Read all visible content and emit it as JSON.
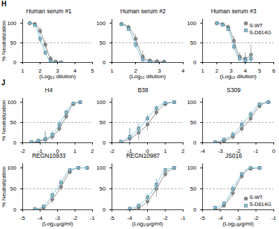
{
  "chart_data": [
    {
      "panel": "H",
      "type": "line",
      "title": "Human serum #1",
      "x_label": "(Log₁₀ dilution)",
      "y_label": "% Neutralization",
      "xlim": [
        1,
        5
      ],
      "xticks": [
        1,
        2,
        3,
        4,
        5
      ],
      "ylim": [
        0,
        110
      ],
      "yticks": [
        0,
        50,
        100
      ],
      "reference_line": 50,
      "x": [
        1.4,
        1.7,
        2.0,
        2.3,
        2.6,
        2.9,
        3.2
      ],
      "series": [
        {
          "name": "S-WT",
          "color": "#8a8a8a",
          "marker": "circle",
          "values": [
            100,
            98,
            80,
            45,
            10,
            2,
            0
          ],
          "error": [
            0,
            3,
            8,
            10,
            5,
            0,
            0
          ]
        },
        {
          "name": "S-D614G",
          "color": "#7cc4e0",
          "marker": "square",
          "values": [
            100,
            95,
            60,
            25,
            3,
            0,
            0
          ],
          "error": [
            0,
            4,
            10,
            8,
            2,
            0,
            0
          ]
        }
      ]
    },
    {
      "panel": "H",
      "type": "line",
      "title": "Human serum #2",
      "x_label": "(Log₁₀ dilution)",
      "xlim": [
        1,
        4
      ],
      "xticks": [
        1,
        2,
        3,
        4
      ],
      "ylim": [
        0,
        110
      ],
      "yticks": [
        0,
        50,
        100
      ],
      "reference_line": 50,
      "x": [
        1.4,
        1.7,
        2.0,
        2.3,
        2.6,
        2.9,
        3.2
      ],
      "series": [
        {
          "name": "S-WT",
          "color": "#8a8a8a",
          "marker": "circle",
          "values": [
            98,
            90,
            60,
            15,
            5,
            3,
            2
          ],
          "error": [
            0,
            5,
            12,
            15,
            4,
            0,
            0
          ]
        },
        {
          "name": "S-D614G",
          "color": "#7cc4e0",
          "marker": "square",
          "values": [
            97,
            85,
            45,
            8,
            2,
            0,
            0
          ],
          "error": [
            0,
            5,
            10,
            6,
            0,
            0,
            0
          ]
        }
      ]
    },
    {
      "panel": "H",
      "type": "line",
      "title": "Human serum #3",
      "x_label": "(Log₁₀ dilution)",
      "legend": "upper right",
      "xlim": [
        1,
        6
      ],
      "xticks": [
        1,
        2,
        3,
        4,
        5,
        6
      ],
      "ylim": [
        0,
        110
      ],
      "yticks": [
        0,
        50,
        100
      ],
      "reference_line": 50,
      "x": [
        2.0,
        2.4,
        2.8,
        3.2,
        3.6,
        4.0,
        4.4
      ],
      "series": [
        {
          "name": "S-WT",
          "color": "#8a8a8a",
          "marker": "circle",
          "values": [
            100,
            97,
            90,
            55,
            15,
            10,
            20
          ],
          "error": [
            0,
            3,
            6,
            12,
            10,
            15,
            25
          ]
        },
        {
          "name": "S-D614G",
          "color": "#7cc4e0",
          "marker": "square",
          "values": [
            100,
            96,
            85,
            40,
            10,
            5,
            10
          ],
          "error": [
            0,
            3,
            5,
            10,
            8,
            10,
            15
          ]
        }
      ]
    },
    {
      "panel": "J",
      "type": "line",
      "title": "H4",
      "y_label": "% Neutralization",
      "xlim": [
        -2,
        2
      ],
      "xticks": [
        -2,
        -1,
        0,
        1,
        2
      ],
      "ylim": [
        0,
        110
      ],
      "yticks": [
        0,
        50,
        100
      ],
      "reference_line": 50,
      "x": [
        -1.5,
        -1.1,
        -0.7,
        -0.3,
        0.1,
        0.5,
        0.9,
        1.3
      ],
      "series": [
        {
          "name": "S-WT",
          "color": "#8a8a8a",
          "marker": "circle",
          "values": [
            0,
            3,
            8,
            15,
            35,
            65,
            95,
            100
          ],
          "error": [
            0,
            5,
            20,
            10,
            10,
            8,
            3,
            0
          ]
        },
        {
          "name": "S-D614G",
          "color": "#7cc4e0",
          "marker": "square",
          "values": [
            2,
            5,
            10,
            20,
            45,
            75,
            97,
            100
          ],
          "error": [
            0,
            5,
            15,
            10,
            10,
            6,
            2,
            0
          ]
        }
      ]
    },
    {
      "panel": "J",
      "type": "line",
      "title": "B38",
      "xlim": [
        -2,
        2
      ],
      "xticks": [
        -2,
        -1,
        0,
        1,
        2
      ],
      "ylim": [
        0,
        110
      ],
      "yticks": [
        0,
        50,
        100
      ],
      "reference_line": 50,
      "x": [
        -1.5,
        -1.0,
        -0.5,
        0.0,
        0.5,
        1.0,
        1.5
      ],
      "series": [
        {
          "name": "S-WT",
          "color": "#8a8a8a",
          "marker": "circle",
          "values": [
            0,
            10,
            25,
            45,
            75,
            95,
            100
          ],
          "error": [
            0,
            25,
            20,
            15,
            10,
            4,
            0
          ]
        },
        {
          "name": "S-D614G",
          "color": "#7cc4e0",
          "marker": "square",
          "values": [
            3,
            15,
            35,
            60,
            85,
            98,
            100
          ],
          "error": [
            0,
            20,
            15,
            12,
            8,
            2,
            0
          ]
        }
      ]
    },
    {
      "panel": "J",
      "type": "line",
      "title": "S309",
      "xlim": [
        -4,
        0
      ],
      "xticks": [
        -4,
        -3,
        -2,
        -1,
        0
      ],
      "ylim": [
        0,
        110
      ],
      "yticks": [
        0,
        50,
        100
      ],
      "reference_line": 50,
      "x": [
        -3.3,
        -2.8,
        -2.3,
        -1.8,
        -1.3,
        -0.8,
        -0.3
      ],
      "series": [
        {
          "name": "S-WT",
          "color": "#8a8a8a",
          "marker": "circle",
          "values": [
            0,
            5,
            15,
            35,
            60,
            90,
            100
          ],
          "error": [
            0,
            4,
            8,
            10,
            10,
            5,
            0
          ]
        },
        {
          "name": "S-D614G",
          "color": "#7cc4e0",
          "marker": "square",
          "values": [
            2,
            8,
            20,
            45,
            70,
            95,
            100
          ],
          "error": [
            0,
            4,
            8,
            10,
            8,
            3,
            0
          ]
        }
      ]
    },
    {
      "panel": "J",
      "type": "line",
      "title": "REGN10933",
      "x_label": "(Log₁₀μg/ml)",
      "y_label": "% Neutralization",
      "xlim": [
        -5,
        -1
      ],
      "xticks": [
        -5,
        -4,
        -3,
        -2,
        -1
      ],
      "ylim": [
        0,
        110
      ],
      "yticks": [
        0,
        50,
        100
      ],
      "reference_line": 50,
      "x": [
        -4.3,
        -3.8,
        -3.3,
        -2.8,
        -2.3,
        -1.8,
        -1.3
      ],
      "series": [
        {
          "name": "S-WT",
          "color": "#8a8a8a",
          "marker": "circle",
          "values": [
            0,
            5,
            25,
            55,
            90,
            100,
            100
          ],
          "error": [
            0,
            4,
            10,
            10,
            5,
            0,
            0
          ]
        },
        {
          "name": "S-D614G",
          "color": "#7cc4e0",
          "marker": "square",
          "values": [
            2,
            8,
            35,
            65,
            95,
            100,
            100
          ],
          "error": [
            0,
            4,
            10,
            8,
            3,
            0,
            0
          ]
        }
      ]
    },
    {
      "panel": "J",
      "type": "line",
      "title": "REGN10987",
      "x_label": "(Log₁₀μg/ml)",
      "xlim": [
        -5,
        -1
      ],
      "xticks": [
        -5,
        -4,
        -3,
        -2,
        -1
      ],
      "ylim": [
        0,
        110
      ],
      "yticks": [
        0,
        50,
        100
      ],
      "reference_line": 50,
      "x": [
        -4.0,
        -3.5,
        -3.0,
        -2.5,
        -2.0,
        -1.5
      ],
      "series": [
        {
          "name": "S-WT",
          "color": "#8a8a8a",
          "marker": "circle",
          "values": [
            0,
            5,
            20,
            50,
            85,
            100
          ],
          "error": [
            0,
            5,
            12,
            20,
            8,
            0
          ]
        },
        {
          "name": "S-D614G",
          "color": "#7cc4e0",
          "marker": "square",
          "values": [
            3,
            10,
            30,
            60,
            95,
            100
          ],
          "error": [
            0,
            5,
            10,
            15,
            4,
            0
          ]
        }
      ]
    },
    {
      "panel": "J",
      "type": "line",
      "title": "JS016",
      "x_label": "(Log₁₀μg/ml)",
      "legend": "lower right",
      "xlim": [
        -5,
        -1
      ],
      "xticks": [
        -5,
        -4,
        -3,
        -2,
        -1
      ],
      "ylim": [
        0,
        110
      ],
      "yticks": [
        0,
        50,
        100
      ],
      "reference_line": 50,
      "x": [
        -4.3,
        -3.8,
        -3.3,
        -2.8,
        -2.3,
        -1.8
      ],
      "series": [
        {
          "name": "S-WT",
          "color": "#8a8a8a",
          "marker": "circle",
          "values": [
            0,
            10,
            40,
            80,
            98,
            100
          ],
          "error": [
            0,
            6,
            10,
            8,
            2,
            0
          ]
        },
        {
          "name": "S-D614G",
          "color": "#7cc4e0",
          "marker": "square",
          "values": [
            5,
            15,
            50,
            85,
            100,
            100
          ],
          "error": [
            0,
            6,
            10,
            6,
            0,
            0
          ]
        }
      ]
    }
  ]
}
